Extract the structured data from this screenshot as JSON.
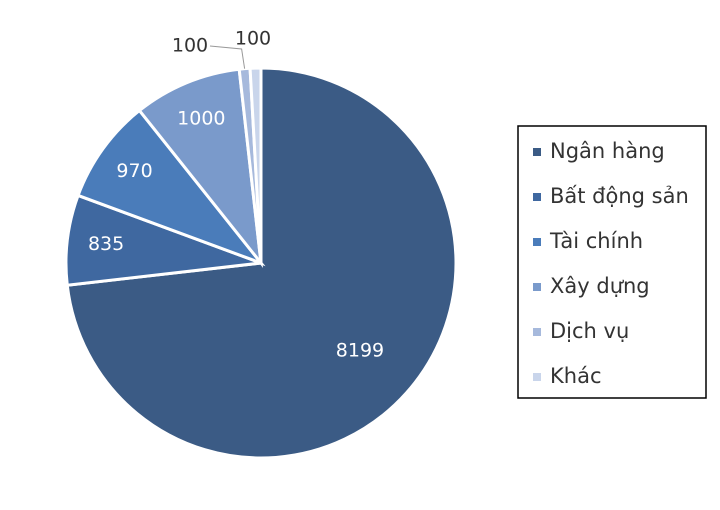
{
  "chart_data": {
    "type": "pie",
    "categories": [
      "Ngân hàng",
      "Bất động sản",
      "Tài chính",
      "Xây dựng",
      "Dịch vụ",
      "Khác"
    ],
    "values": [
      8199,
      835,
      970,
      1000,
      100,
      100
    ],
    "colors": [
      "#3b5b85",
      "#3f68a0",
      "#4a7cba",
      "#7a9acb",
      "#a6b9dc",
      "#c9d5eb"
    ],
    "legend": "right"
  }
}
